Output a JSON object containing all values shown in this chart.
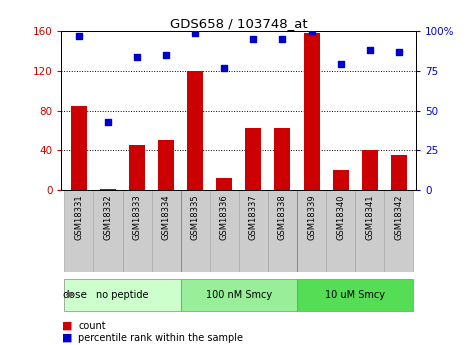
{
  "title": "GDS658 / 103748_at",
  "samples": [
    "GSM18331",
    "GSM18332",
    "GSM18333",
    "GSM18334",
    "GSM18335",
    "GSM18336",
    "GSM18337",
    "GSM18338",
    "GSM18339",
    "GSM18340",
    "GSM18341",
    "GSM18342"
  ],
  "counts": [
    85,
    1,
    45,
    50,
    120,
    12,
    62,
    62,
    158,
    20,
    40,
    35
  ],
  "percentiles": [
    97,
    43,
    84,
    85,
    99,
    77,
    95,
    95,
    100,
    79,
    88,
    87
  ],
  "bar_color": "#cc0000",
  "scatter_color": "#0000cc",
  "ylim_left": [
    0,
    160
  ],
  "ylim_right": [
    0,
    100
  ],
  "yticks_left": [
    0,
    40,
    80,
    120,
    160
  ],
  "ytick_labels_left": [
    "0",
    "40",
    "80",
    "120",
    "160"
  ],
  "yticks_right": [
    0,
    25,
    50,
    75,
    100
  ],
  "ytick_labels_right": [
    "0",
    "25",
    "50",
    "75",
    "100%"
  ],
  "groups": [
    {
      "label": "no peptide",
      "start": 0,
      "end": 4,
      "color": "#ccffcc"
    },
    {
      "label": "100 nM Smcy",
      "start": 4,
      "end": 8,
      "color": "#99ee99"
    },
    {
      "label": "10 uM Smcy",
      "start": 8,
      "end": 12,
      "color": "#55dd55"
    }
  ],
  "dose_label": "dose",
  "legend_count_label": "count",
  "legend_pct_label": "percentile rank within the sample",
  "tick_color_left": "#cc0000",
  "tick_color_right": "#0000cc",
  "xtick_bg": "#cccccc",
  "plot_bg": "#ffffff"
}
